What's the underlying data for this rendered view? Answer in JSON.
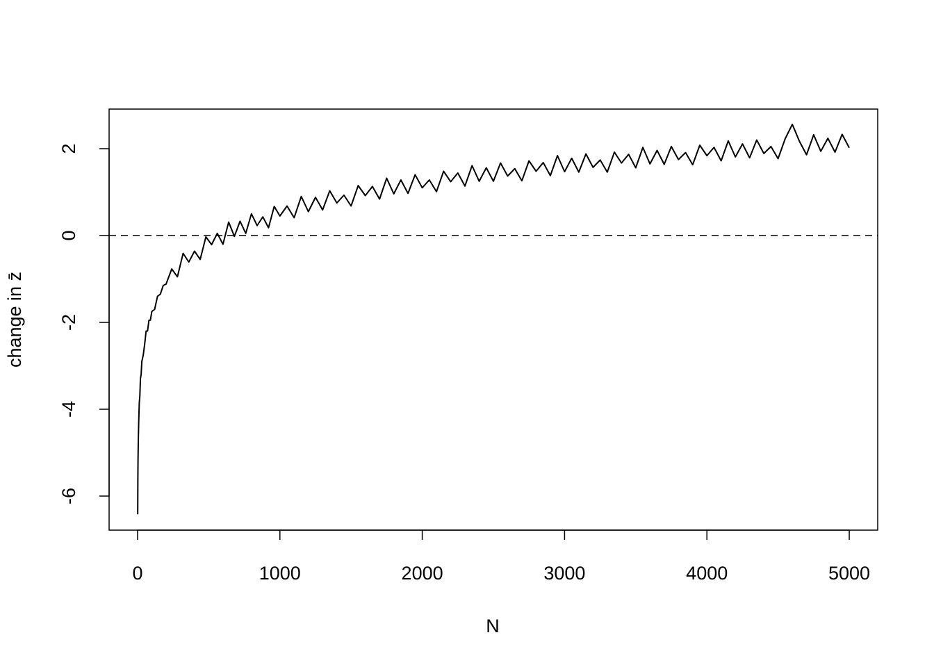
{
  "chart_data": {
    "type": "line",
    "x_label": "N",
    "y_label": "change in z̄",
    "color": "#000000",
    "reference_line": 0,
    "xlim": [
      -200,
      5200
    ],
    "ylim": [
      -6.784,
      2.912
    ],
    "xticks": [
      0,
      1000,
      2000,
      3000,
      4000,
      5000
    ],
    "yticks": [
      -6,
      -4,
      -2,
      0,
      2
    ],
    "x": [
      1,
      2,
      3,
      5,
      8,
      12,
      16,
      20,
      25,
      30,
      40,
      50,
      60,
      70,
      80,
      90,
      100,
      120,
      140,
      160,
      180,
      200,
      240,
      280,
      320,
      360,
      400,
      440,
      480,
      520,
      560,
      600,
      640,
      680,
      720,
      760,
      800,
      840,
      880,
      920,
      960,
      1000,
      1050,
      1100,
      1150,
      1200,
      1250,
      1300,
      1350,
      1400,
      1450,
      1500,
      1550,
      1600,
      1650,
      1700,
      1750,
      1800,
      1850,
      1900,
      1950,
      2000,
      2050,
      2100,
      2150,
      2200,
      2250,
      2300,
      2350,
      2400,
      2450,
      2500,
      2550,
      2600,
      2650,
      2700,
      2750,
      2800,
      2850,
      2900,
      2950,
      3000,
      3050,
      3100,
      3150,
      3200,
      3250,
      3300,
      3350,
      3400,
      3450,
      3500,
      3550,
      3600,
      3650,
      3700,
      3750,
      3800,
      3850,
      3900,
      3950,
      4000,
      4050,
      4100,
      4150,
      4200,
      4250,
      4300,
      4350,
      4400,
      4450,
      4500,
      4550,
      4600,
      4650,
      4700,
      4750,
      4800,
      4850,
      4900,
      4950,
      5000
    ],
    "values": [
      -6.42,
      -5.65,
      -5.2,
      -4.75,
      -4.3,
      -3.85,
      -3.7,
      -3.3,
      -3.2,
      -2.9,
      -2.75,
      -2.5,
      -2.2,
      -2.2,
      -1.95,
      -1.95,
      -1.75,
      -1.7,
      -1.4,
      -1.35,
      -1.15,
      -1.12,
      -0.77,
      -0.95,
      -0.41,
      -0.61,
      -0.36,
      -0.55,
      -0.03,
      -0.21,
      0.05,
      -0.2,
      0.31,
      -0.02,
      0.33,
      0.05,
      0.5,
      0.23,
      0.43,
      0.18,
      0.67,
      0.45,
      0.68,
      0.41,
      0.9,
      0.55,
      0.88,
      0.59,
      1.03,
      0.75,
      0.93,
      0.68,
      1.15,
      0.92,
      1.13,
      0.84,
      1.32,
      0.96,
      1.28,
      0.97,
      1.4,
      1.1,
      1.28,
      1.01,
      1.48,
      1.24,
      1.44,
      1.14,
      1.61,
      1.25,
      1.56,
      1.25,
      1.67,
      1.37,
      1.54,
      1.26,
      1.72,
      1.48,
      1.68,
      1.38,
      1.84,
      1.47,
      1.78,
      1.46,
      1.88,
      1.57,
      1.74,
      1.46,
      1.92,
      1.67,
      1.87,
      1.56,
      2.03,
      1.65,
      1.96,
      1.64,
      2.05,
      1.75,
      1.91,
      1.63,
      2.08,
      1.84,
      2.03,
      1.72,
      2.18,
      1.81,
      2.11,
      1.79,
      2.2,
      1.89,
      2.05,
      1.77,
      2.23,
      2.56,
      2.17,
      1.86,
      2.32,
      1.94,
      2.24,
      1.92,
      2.33,
      2.02
    ]
  }
}
